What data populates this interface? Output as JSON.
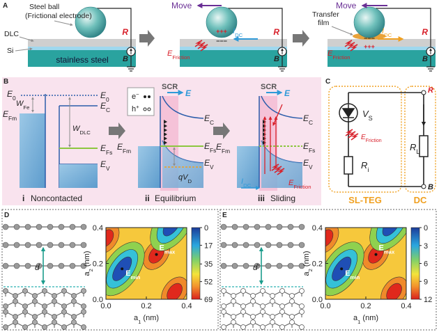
{
  "panel_a": {
    "label": "A",
    "ball_label": [
      "Steel ball",
      "(Frictional electrode)"
    ],
    "dlc": "DLC",
    "si": "Si",
    "substrate": "stainless steel",
    "resistor": "R",
    "meter": "B",
    "move": "Move",
    "current": {
      "main": "I",
      "sub": "DC"
    },
    "friction_field": {
      "main": "E",
      "sub": "Friction"
    },
    "film_label": [
      "Transfer",
      "film"
    ],
    "positive_charges": "+++",
    "negative_charges": "−−−"
  },
  "panel_b": {
    "label": "B",
    "vacuum": {
      "main": "E",
      "sub": "0"
    },
    "conduction": {
      "main": "E",
      "sub": "C"
    },
    "metal_fermi": {
      "main": "E",
      "sub": "Fm"
    },
    "work_fe": {
      "main": "W",
      "sub": "Fe"
    },
    "work_dlc": {
      "main": "W",
      "sub": "DLC"
    },
    "dlc_fermi": {
      "main": "E",
      "sub": "Fs"
    },
    "valence": {
      "main": "E",
      "sub": "V"
    },
    "electron": {
      "main": "e",
      "sup": "−"
    },
    "hole": {
      "main": "h",
      "sup": "+"
    },
    "scr": "SCR",
    "field": "E",
    "barrier": {
      "main": "qV",
      "sub": "D"
    },
    "current": {
      "main": "I",
      "sub": "DC"
    },
    "friction_field": {
      "main": "E",
      "sub": "Friction"
    },
    "stages": [
      {
        "index": "i",
        "name": "Noncontacted"
      },
      {
        "index": "ii",
        "name": "Equilibrium"
      },
      {
        "index": "iii",
        "name": "Sliding"
      }
    ]
  },
  "panel_c": {
    "label": "C",
    "source": {
      "main": "V",
      "sub": "S"
    },
    "friction_field": {
      "main": "E",
      "sub": "Friction"
    },
    "internal": {
      "main": "R",
      "sub": "i"
    },
    "load": {
      "main": "R",
      "sub": "L"
    },
    "node_r": "R",
    "node_b": "B",
    "teg": "SL-TEG",
    "dc": "DC"
  },
  "panel_d": {
    "label": "D",
    "spacing": "d",
    "map": {
      "xlabel": {
        "main": "a",
        "sub": "1",
        "rest": " (nm)"
      },
      "ylabel": {
        "main": "a",
        "sub": "2",
        "rest": " (nm)"
      },
      "xlim": [
        0,
        0.4
      ],
      "ylim": [
        0,
        0.4
      ],
      "xticks": [
        {
          "value": 0,
          "label": "0.0"
        },
        {
          "value": 0.2,
          "label": "0.2"
        },
        {
          "value": 0.4,
          "label": "0.4"
        }
      ],
      "yticks": [
        {
          "value": 0,
          "label": "0.0"
        },
        {
          "value": 0.2,
          "label": "0.2"
        },
        {
          "value": 0.4,
          "label": "0.4"
        }
      ],
      "clim": [
        0,
        69
      ],
      "cticks": [
        0,
        17,
        35,
        52,
        69
      ],
      "min_label": {
        "main": "E",
        "sub": "min"
      },
      "max_label": {
        "main": "E",
        "sub": "max"
      }
    }
  },
  "panel_e": {
    "label": "E",
    "spacing": "d'",
    "map": {
      "xlabel": {
        "main": "a",
        "sub": "1",
        "rest": " (nm)"
      },
      "ylabel": {
        "main": "a",
        "sub": "2",
        "rest": " (nm)"
      },
      "xlim": [
        0,
        0.4
      ],
      "ylim": [
        0,
        0.4
      ],
      "xticks": [
        {
          "value": 0,
          "label": "0.0"
        },
        {
          "value": 0.2,
          "label": "0.2"
        },
        {
          "value": 0.4,
          "label": "0.4"
        }
      ],
      "yticks": [
        {
          "value": 0,
          "label": "0.0"
        },
        {
          "value": 0.2,
          "label": "0.2"
        },
        {
          "value": 0.4,
          "label": "0.4"
        }
      ],
      "clim": [
        0,
        12
      ],
      "cticks": [
        0,
        3,
        6,
        9,
        12
      ],
      "min_label": {
        "main": "E",
        "sub": "min"
      },
      "max_label": {
        "main": "E",
        "sub": "max"
      }
    }
  }
}
